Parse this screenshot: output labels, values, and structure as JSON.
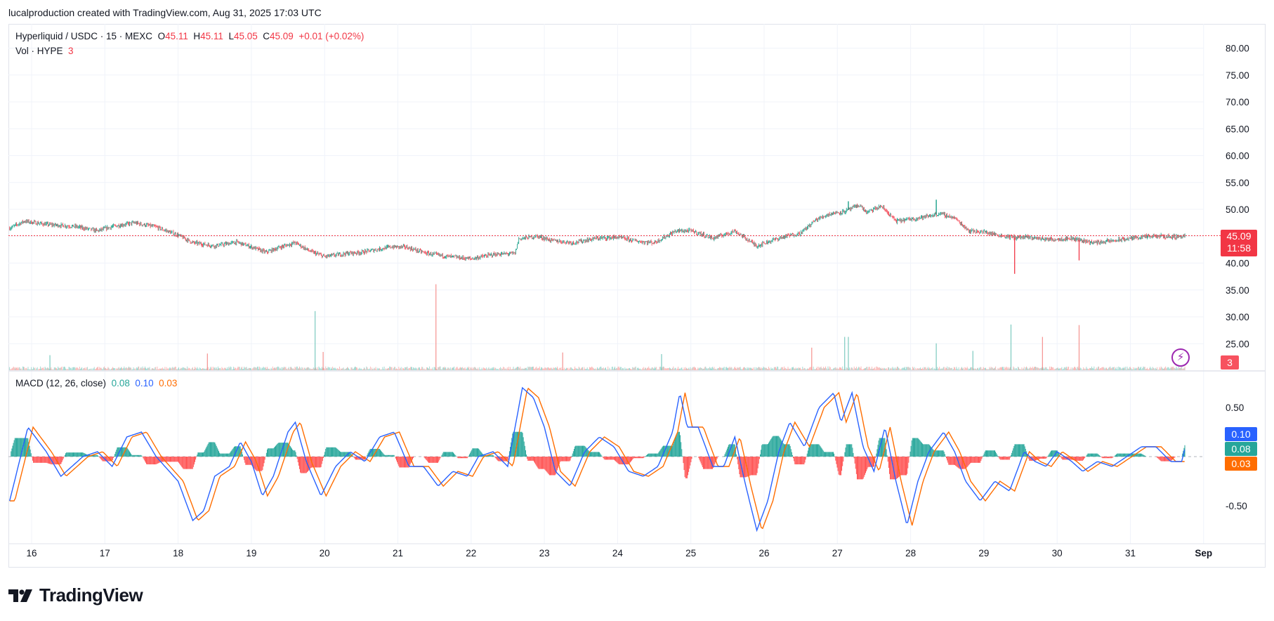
{
  "header": {
    "credit": "lucalproduction created with TradingView.com, Aug 31, 2025 17:03 UTC"
  },
  "legend": {
    "symbol": "Hyperliquid / USDC · 15 · MEXC",
    "o_label": "O",
    "o_value": "45.11",
    "h_label": "H",
    "h_value": "45.11",
    "l_label": "L",
    "l_value": "45.05",
    "c_label": "C",
    "c_value": "45.09",
    "change": "+0.01 (+0.02%)",
    "vol_label": "Vol · HYPE",
    "vol_value": "3"
  },
  "macd_legend": {
    "label": "MACD (12, 26, close)",
    "hist": "0.08",
    "macd": "0.10",
    "signal": "0.03"
  },
  "badges": {
    "price": "45.09",
    "countdown": "11:58",
    "volume": "3",
    "macd": "0.10",
    "hist": "0.08",
    "signal": "0.03"
  },
  "footer": {
    "brand": "TradingView"
  },
  "colors": {
    "up": "#089981",
    "down": "#f23645",
    "macd": "#2962ff",
    "signal": "#ff6d00",
    "hist_up": "#26a69a",
    "hist_down": "#ff5252"
  },
  "chart_data": [
    {
      "type": "candlestick",
      "title": "Hyperliquid / USDC · 15 · MEXC",
      "y_ticks": [
        "80.00",
        "75.00",
        "70.00",
        "65.00",
        "60.00",
        "55.00",
        "50.00",
        "45.00",
        "40.00",
        "35.00",
        "30.00",
        "25.00"
      ],
      "ylim": [
        21,
        81.5
      ],
      "x_ticks": [
        "16",
        "17",
        "18",
        "19",
        "20",
        "21",
        "22",
        "23",
        "24",
        "25",
        "26",
        "27",
        "28",
        "29",
        "30",
        "31",
        "Sep"
      ],
      "last_price": 45.09,
      "close_path": [
        [
          15.7,
          46.5
        ],
        [
          15.9,
          47.8
        ],
        [
          16.2,
          47.2
        ],
        [
          16.6,
          46.8
        ],
        [
          16.9,
          46.0
        ],
        [
          17.1,
          46.8
        ],
        [
          17.4,
          47.5
        ],
        [
          17.7,
          46.7
        ],
        [
          18.0,
          45.2
        ],
        [
          18.2,
          43.8
        ],
        [
          18.5,
          43.2
        ],
        [
          18.8,
          43.9
        ],
        [
          19.0,
          43.0
        ],
        [
          19.2,
          42.0
        ],
        [
          19.4,
          43.0
        ],
        [
          19.6,
          43.8
        ],
        [
          19.8,
          42.2
        ],
        [
          20.0,
          41.2
        ],
        [
          20.3,
          41.8
        ],
        [
          20.5,
          42.0
        ],
        [
          20.9,
          43.0
        ],
        [
          21.1,
          43.0
        ],
        [
          21.4,
          41.8
        ],
        [
          21.7,
          41.2
        ],
        [
          22.0,
          40.8
        ],
        [
          22.3,
          41.6
        ],
        [
          22.6,
          41.8
        ],
        [
          22.65,
          44.5
        ],
        [
          22.9,
          45.0
        ],
        [
          23.1,
          44.2
        ],
        [
          23.4,
          43.8
        ],
        [
          23.7,
          44.6
        ],
        [
          24.0,
          44.8
        ],
        [
          24.3,
          44.0
        ],
        [
          24.5,
          43.8
        ],
        [
          24.8,
          46.0
        ],
        [
          25.0,
          46.0
        ],
        [
          25.1,
          45.6
        ],
        [
          25.3,
          44.6
        ],
        [
          25.6,
          46.0
        ],
        [
          25.9,
          43.2
        ],
        [
          26.1,
          44.2
        ],
        [
          26.3,
          45.0
        ],
        [
          26.5,
          45.6
        ],
        [
          26.7,
          48.0
        ],
        [
          26.9,
          49.2
        ],
        [
          27.1,
          49.6
        ],
        [
          27.3,
          50.8
        ],
        [
          27.4,
          49.4
        ],
        [
          27.6,
          50.6
        ],
        [
          27.8,
          47.8
        ],
        [
          28.0,
          48.2
        ],
        [
          28.2,
          48.6
        ],
        [
          28.4,
          49.2
        ],
        [
          28.6,
          48.4
        ],
        [
          28.8,
          46.0
        ],
        [
          29.0,
          45.8
        ],
        [
          29.2,
          45.2
        ],
        [
          29.4,
          44.8
        ],
        [
          29.6,
          44.8
        ],
        [
          29.9,
          44.4
        ],
        [
          30.2,
          44.6
        ],
        [
          30.5,
          43.8
        ],
        [
          30.8,
          44.2
        ],
        [
          31.1,
          44.8
        ],
        [
          31.4,
          45.0
        ],
        [
          31.6,
          44.9
        ],
        [
          31.75,
          45.09
        ]
      ],
      "spikes": [
        {
          "x": 29.42,
          "low": 38.0
        },
        {
          "x": 30.3,
          "low": 40.5
        },
        {
          "x": 28.35,
          "high": 51.8
        },
        {
          "x": 27.15,
          "high": 51.5
        }
      ]
    },
    {
      "type": "bar",
      "title": "Vol · HYPE",
      "last_value": 3,
      "peaks": [
        {
          "x": 19.87,
          "value": 1100,
          "dir": "up"
        },
        {
          "x": 21.52,
          "value": 1600,
          "dir": "down"
        },
        {
          "x": 27.1,
          "value": 620,
          "dir": "up"
        },
        {
          "x": 27.15,
          "value": 620,
          "dir": "up"
        },
        {
          "x": 29.37,
          "value": 850,
          "dir": "up"
        },
        {
          "x": 29.8,
          "value": 620,
          "dir": "down"
        },
        {
          "x": 30.3,
          "value": 840,
          "dir": "down"
        },
        {
          "x": 26.65,
          "value": 420,
          "dir": "down"
        },
        {
          "x": 28.35,
          "value": 500,
          "dir": "up"
        },
        {
          "x": 28.85,
          "value": 360,
          "dir": "up"
        },
        {
          "x": 19.98,
          "value": 340,
          "dir": "down"
        },
        {
          "x": 16.25,
          "value": 280,
          "dir": "up"
        },
        {
          "x": 18.4,
          "value": 310,
          "dir": "down"
        },
        {
          "x": 24.6,
          "value": 300,
          "dir": "up"
        },
        {
          "x": 23.25,
          "value": 330,
          "dir": "down"
        }
      ]
    },
    {
      "type": "line",
      "title": "MACD (12, 26, close)",
      "y_ticks": [
        "0.50",
        "-0.50"
      ],
      "ylim": [
        -0.8,
        0.75
      ],
      "series": [
        {
          "name": "MACD",
          "values": [
            [
              15.7,
              -0.45
            ],
            [
              15.95,
              0.3
            ],
            [
              16.2,
              0.05
            ],
            [
              16.4,
              -0.2
            ],
            [
              16.7,
              0.0
            ],
            [
              16.9,
              0.05
            ],
            [
              17.1,
              -0.1
            ],
            [
              17.3,
              0.2
            ],
            [
              17.5,
              0.25
            ],
            [
              17.7,
              0.0
            ],
            [
              18.0,
              -0.25
            ],
            [
              18.2,
              -0.65
            ],
            [
              18.35,
              -0.55
            ],
            [
              18.5,
              -0.2
            ],
            [
              18.7,
              -0.1
            ],
            [
              18.85,
              0.15
            ],
            [
              19.0,
              -0.05
            ],
            [
              19.15,
              -0.4
            ],
            [
              19.3,
              -0.2
            ],
            [
              19.5,
              0.25
            ],
            [
              19.6,
              0.35
            ],
            [
              19.75,
              -0.05
            ],
            [
              19.95,
              -0.4
            ],
            [
              20.15,
              -0.1
            ],
            [
              20.35,
              0.05
            ],
            [
              20.55,
              -0.05
            ],
            [
              20.75,
              0.2
            ],
            [
              20.95,
              0.25
            ],
            [
              21.15,
              -0.1
            ],
            [
              21.35,
              -0.1
            ],
            [
              21.55,
              -0.3
            ],
            [
              21.75,
              -0.15
            ],
            [
              21.95,
              -0.2
            ],
            [
              22.1,
              0.0
            ],
            [
              22.3,
              0.05
            ],
            [
              22.5,
              -0.1
            ],
            [
              22.7,
              0.7
            ],
            [
              22.85,
              0.6
            ],
            [
              23.0,
              0.3
            ],
            [
              23.15,
              -0.15
            ],
            [
              23.35,
              -0.3
            ],
            [
              23.55,
              0.05
            ],
            [
              23.75,
              0.2
            ],
            [
              23.95,
              0.1
            ],
            [
              24.15,
              -0.15
            ],
            [
              24.35,
              -0.2
            ],
            [
              24.55,
              -0.1
            ],
            [
              24.75,
              0.25
            ],
            [
              24.85,
              0.65
            ],
            [
              24.95,
              0.3
            ],
            [
              25.1,
              0.3
            ],
            [
              25.3,
              -0.1
            ],
            [
              25.45,
              -0.1
            ],
            [
              25.6,
              0.2
            ],
            [
              25.75,
              -0.3
            ],
            [
              25.9,
              -0.75
            ],
            [
              26.05,
              -0.45
            ],
            [
              26.2,
              0.05
            ],
            [
              26.35,
              0.35
            ],
            [
              26.55,
              0.1
            ],
            [
              26.75,
              0.5
            ],
            [
              26.95,
              0.65
            ],
            [
              27.05,
              0.35
            ],
            [
              27.2,
              0.65
            ],
            [
              27.35,
              0.1
            ],
            [
              27.5,
              -0.15
            ],
            [
              27.65,
              0.3
            ],
            [
              27.8,
              -0.25
            ],
            [
              27.95,
              -0.7
            ],
            [
              28.1,
              -0.25
            ],
            [
              28.25,
              0.05
            ],
            [
              28.45,
              0.25
            ],
            [
              28.6,
              0.05
            ],
            [
              28.75,
              -0.25
            ],
            [
              28.95,
              -0.45
            ],
            [
              29.15,
              -0.25
            ],
            [
              29.35,
              -0.35
            ],
            [
              29.55,
              0.05
            ],
            [
              29.7,
              -0.05
            ],
            [
              29.85,
              -0.1
            ],
            [
              30.0,
              0.05
            ],
            [
              30.2,
              -0.05
            ],
            [
              30.35,
              -0.15
            ],
            [
              30.55,
              -0.05
            ],
            [
              30.75,
              -0.1
            ],
            [
              30.95,
              0.0
            ],
            [
              31.15,
              0.1
            ],
            [
              31.35,
              0.1
            ],
            [
              31.55,
              -0.05
            ],
            [
              31.7,
              -0.05
            ],
            [
              31.75,
              0.1
            ]
          ]
        },
        {
          "name": "Signal",
          "lag": 0.07
        },
        {
          "name": "Histogram"
        }
      ]
    }
  ]
}
